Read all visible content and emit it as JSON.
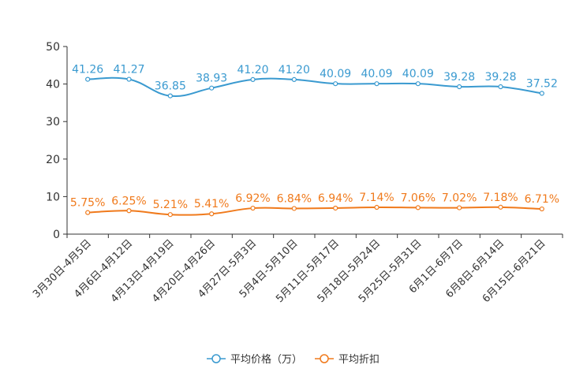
{
  "chart_data": {
    "type": "line",
    "title": "",
    "xlabel": "",
    "ylabel": "",
    "ylim": [
      0,
      50
    ],
    "yticks": [
      0,
      10,
      20,
      30,
      40,
      50
    ],
    "grid": false,
    "legend_position": "bottom",
    "categories": [
      "3月30日-4月5日",
      "4月6日-4月12日",
      "4月13日-4月19日",
      "4月20日-4月26日",
      "4月27日-5月3日",
      "5月4日-5月10日",
      "5月11日-5月17日",
      "5月18日-5月24日",
      "5月25日-5月31日",
      "6月1日-6月7日",
      "6月8日-6月14日",
      "6月15日-6月21日"
    ],
    "series": [
      {
        "name": "平均价格（万）",
        "color": "#3a9ad0",
        "values": [
          41.26,
          41.27,
          36.85,
          38.93,
          41.2,
          41.2,
          40.09,
          40.09,
          40.09,
          39.28,
          39.28,
          37.52
        ],
        "labels": [
          "41.26",
          "41.27",
          "36.85",
          "38.93",
          "41.20",
          "41.20",
          "40.09",
          "40.09",
          "40.09",
          "39.28",
          "39.28",
          "37.52"
        ]
      },
      {
        "name": "平均折扣",
        "color": "#f07a1c",
        "values": [
          5.75,
          6.25,
          5.21,
          5.41,
          6.92,
          6.84,
          6.94,
          7.14,
          7.06,
          7.02,
          7.18,
          6.71
        ],
        "labels": [
          "5.75%",
          "6.25%",
          "5.21%",
          "5.41%",
          "6.92%",
          "6.84%",
          "6.94%",
          "7.14%",
          "7.06%",
          "7.02%",
          "7.18%",
          "6.71%"
        ]
      }
    ]
  }
}
